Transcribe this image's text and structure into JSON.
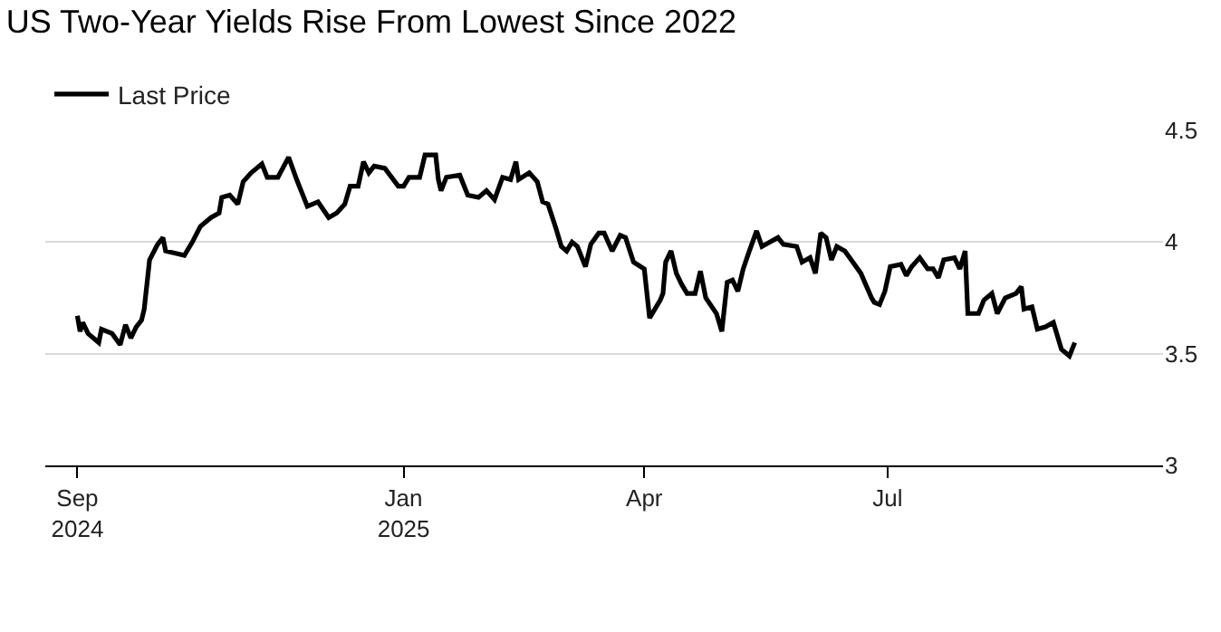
{
  "chart_data": {
    "type": "line",
    "title": "US Two-Year Yields Rise From Lowest Since 2022",
    "x": [
      "2024-09-01",
      "2024-09-02",
      "2024-09-03",
      "2024-09-05",
      "2024-09-09",
      "2024-09-10",
      "2024-09-14",
      "2024-09-17",
      "2024-09-19",
      "2024-09-21",
      "2024-09-23",
      "2024-09-25",
      "2024-09-26",
      "2024-09-28",
      "2024-10-01",
      "2024-10-03",
      "2024-10-04",
      "2024-10-11",
      "2024-10-14",
      "2024-10-17",
      "2024-10-21",
      "2024-10-24",
      "2024-10-25",
      "2024-10-28",
      "2024-10-31",
      "2024-11-02",
      "2024-11-05",
      "2024-11-09",
      "2024-11-11",
      "2024-11-15",
      "2024-11-19",
      "2024-11-22",
      "2024-11-26",
      "2024-11-30",
      "2024-12-04",
      "2024-12-07",
      "2024-12-10",
      "2024-12-12",
      "2024-12-15",
      "2024-12-17",
      "2024-12-19",
      "2024-12-21",
      "2024-12-25",
      "2024-12-30",
      "2025-01-01",
      "2025-01-03",
      "2025-01-07",
      "2025-01-09",
      "2025-01-13",
      "2025-01-14",
      "2025-01-15",
      "2025-01-17",
      "2025-01-22",
      "2025-01-25",
      "2025-01-29",
      "2025-02-01",
      "2025-02-04",
      "2025-02-07",
      "2025-02-10",
      "2025-02-12",
      "2025-02-13",
      "2025-02-17",
      "2025-02-20",
      "2025-02-22",
      "2025-02-24",
      "2025-02-27",
      "2025-03-01",
      "2025-03-03",
      "2025-03-05",
      "2025-03-07",
      "2025-03-10",
      "2025-03-12",
      "2025-03-15",
      "2025-03-17",
      "2025-03-20",
      "2025-03-23",
      "2025-03-25",
      "2025-03-28",
      "2025-04-01",
      "2025-04-03",
      "2025-04-07",
      "2025-04-08",
      "2025-04-09",
      "2025-04-11",
      "2025-04-13",
      "2025-04-15",
      "2025-04-17",
      "2025-04-20",
      "2025-04-22",
      "2025-04-24",
      "2025-04-28",
      "2025-04-30",
      "2025-05-02",
      "2025-05-04",
      "2025-05-06",
      "2025-05-08",
      "2025-05-10",
      "2025-05-13",
      "2025-05-15",
      "2025-05-18",
      "2025-05-21",
      "2025-05-23",
      "2025-05-28",
      "2025-05-30",
      "2025-06-02",
      "2025-06-04",
      "2025-06-06",
      "2025-06-08",
      "2025-06-10",
      "2025-06-12",
      "2025-06-15",
      "2025-06-18",
      "2025-06-21",
      "2025-06-25",
      "2025-06-26",
      "2025-06-28",
      "2025-06-30",
      "2025-07-02",
      "2025-07-06",
      "2025-07-08",
      "2025-07-10",
      "2025-07-13",
      "2025-07-16",
      "2025-07-18",
      "2025-07-20",
      "2025-07-22",
      "2025-07-26",
      "2025-07-28",
      "2025-07-30",
      "2025-07-31",
      "2025-08-04",
      "2025-08-06",
      "2025-08-09",
      "2025-08-11",
      "2025-08-14",
      "2025-08-18",
      "2025-08-20",
      "2025-08-21",
      "2025-08-24",
      "2025-08-26",
      "2025-08-29",
      "2025-09-01",
      "2025-09-04",
      "2025-09-07",
      "2025-09-09"
    ],
    "series": [
      {
        "name": "Last Price",
        "color": "#000000",
        "values": [
          3.67,
          3.6,
          3.64,
          3.59,
          3.55,
          3.61,
          3.59,
          3.54,
          3.63,
          3.57,
          3.62,
          3.65,
          3.7,
          3.92,
          3.99,
          4.02,
          3.96,
          3.94,
          4.0,
          4.07,
          4.11,
          4.13,
          4.2,
          4.21,
          4.17,
          4.27,
          4.31,
          4.35,
          4.29,
          4.29,
          4.38,
          4.28,
          4.16,
          4.18,
          4.11,
          4.13,
          4.17,
          4.25,
          4.25,
          4.36,
          4.31,
          4.34,
          4.33,
          4.25,
          4.25,
          4.29,
          4.29,
          4.39,
          4.39,
          4.28,
          4.23,
          4.29,
          4.3,
          4.21,
          4.2,
          4.23,
          4.19,
          4.29,
          4.28,
          4.36,
          4.28,
          4.31,
          4.27,
          4.18,
          4.17,
          4.06,
          3.98,
          3.96,
          4.0,
          3.98,
          3.89,
          3.99,
          4.04,
          4.04,
          3.96,
          4.03,
          4.02,
          3.91,
          3.88,
          3.66,
          3.74,
          3.77,
          3.91,
          3.96,
          3.86,
          3.81,
          3.77,
          3.77,
          3.87,
          3.75,
          3.68,
          3.6,
          3.82,
          3.83,
          3.78,
          3.88,
          3.95,
          4.05,
          3.98,
          4.0,
          4.02,
          3.99,
          3.98,
          3.91,
          3.93,
          3.86,
          4.04,
          4.02,
          3.92,
          3.98,
          3.96,
          3.91,
          3.86,
          3.75,
          3.73,
          3.72,
          3.78,
          3.89,
          3.9,
          3.85,
          3.89,
          3.93,
          3.88,
          3.88,
          3.84,
          3.92,
          3.93,
          3.88,
          3.96,
          3.68,
          3.68,
          3.74,
          3.77,
          3.68,
          3.75,
          3.77,
          3.8,
          3.7,
          3.71,
          3.61,
          3.62,
          3.64,
          3.52,
          3.49,
          3.55
        ]
      }
    ],
    "xlim": [
      "2024-08-20",
      "2025-10-12"
    ],
    "xticks": [
      {
        "value": "2024-09-01",
        "label": "Sep\n2024"
      },
      {
        "value": "2025-01-01",
        "label": "Jan\n2025"
      },
      {
        "value": "2025-04-01",
        "label": "Apr"
      },
      {
        "value": "2025-07-01",
        "label": "Jul"
      }
    ],
    "ylim": [
      3,
      4.5
    ],
    "yticks": [
      3,
      3.5,
      4,
      4.5
    ],
    "grid": "y",
    "legend": "top left",
    "line_style": "solid",
    "marker": "none"
  }
}
